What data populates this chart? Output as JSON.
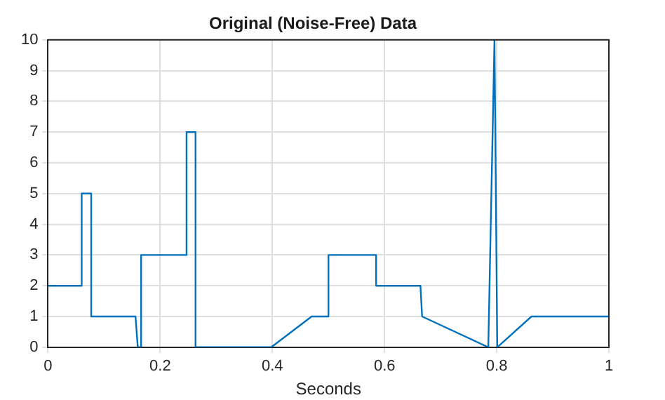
{
  "chart_data": {
    "type": "line",
    "title": "Original (Noise-Free) Data",
    "xlabel": "Seconds",
    "x": [
      0,
      0.06,
      0.06,
      0.077,
      0.077,
      0.156,
      0.16,
      0.166,
      0.166,
      0.247,
      0.247,
      0.263,
      0.263,
      0.398,
      0.47,
      0.5,
      0.5,
      0.585,
      0.585,
      0.664,
      0.667,
      0.785,
      0.796,
      0.801,
      0.862,
      1
    ],
    "series": [
      {
        "color": "#0072bd",
        "values": [
          2,
          2,
          5,
          5,
          1,
          1,
          0,
          0,
          3,
          3,
          7,
          7,
          0,
          0,
          1,
          1,
          3,
          3,
          2,
          2,
          1,
          0,
          10,
          0,
          1,
          1
        ]
      }
    ],
    "xlim": [
      0,
      1
    ],
    "xticks": [
      0,
      0.2,
      0.4,
      0.6,
      0.8,
      1
    ],
    "ylim": [
      0,
      10
    ],
    "yticks": [
      0,
      1,
      2,
      3,
      4,
      5,
      6,
      7,
      8,
      9,
      10
    ],
    "grid": true,
    "legend": false,
    "marker": "none",
    "line_style": "solid"
  }
}
